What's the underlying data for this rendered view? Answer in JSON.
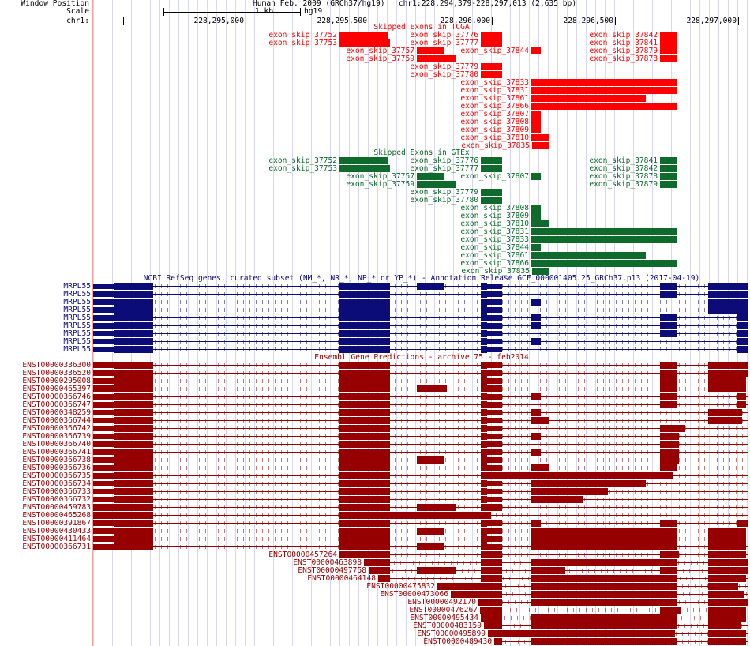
{
  "header": {
    "window_position_label": "Window Position",
    "scale_label": "Scale",
    "chr_label": "chr1:",
    "assembly_title": "Human Feb. 2009 (GRCh37/hg19)   chr1:228,294,379-228,297,013 (2,635 bp)",
    "scale_text": "1 kb",
    "scale_db": "hg19",
    "ruler_ticks": [
      "228,295,000",
      "228,295,500",
      "228,296,000",
      "228,296,500",
      "228,297,000"
    ]
  },
  "colors": {
    "tcga": "#ff0000",
    "gtex": "#0e6b2b",
    "refseq": "#0c0c78",
    "ensembl": "#960000"
  },
  "tracks": {
    "tcga": {
      "title": "Skipped Exons in TCGA",
      "rows": [
        [
          "exon_skip_37752",
          "exon_skip_37776",
          "exon_skip_37842"
        ],
        [
          "exon_skip_37753",
          "exon_skip_37777",
          "exon_skip_37841"
        ],
        [
          "exon_skip_37757",
          "exon_skip_37844",
          "exon_skip_37879"
        ],
        [
          "exon_skip_37759",
          "exon_skip_37878"
        ],
        [
          "exon_skip_37779"
        ],
        [
          "exon_skip_37780"
        ],
        [
          "exon_skip_37833"
        ],
        [
          "exon_skip_37831"
        ],
        [
          "exon_skip_37861"
        ],
        [
          "exon_skip_37866"
        ],
        [
          "exon_skip_37807"
        ],
        [
          "exon_skip_37808"
        ],
        [
          "exon_skip_37809"
        ],
        [
          "exon_skip_37810"
        ],
        [
          "exon_skip_37835"
        ]
      ]
    },
    "gtex": {
      "title": "Skipped Exons in GTEx",
      "rows": [
        [
          "exon_skip_37752",
          "exon_skip_37776",
          "exon_skip_37841"
        ],
        [
          "exon_skip_37753",
          "exon_skip_37777",
          "exon_skip_37842"
        ],
        [
          "exon_skip_37757",
          "exon_skip_37807",
          "exon_skip_37878"
        ],
        [
          "exon_skip_37759",
          "exon_skip_37879"
        ],
        [
          "exon_skip_37779"
        ],
        [
          "exon_skip_37780"
        ],
        [
          "exon_skip_37808"
        ],
        [
          "exon_skip_37809"
        ],
        [
          "exon_skip_37810"
        ],
        [
          "exon_skip_37831"
        ],
        [
          "exon_skip_37833"
        ],
        [
          "exon_skip_37844"
        ],
        [
          "exon_skip_37861"
        ],
        [
          "exon_skip_37866"
        ],
        [
          "exon_skip_37835"
        ]
      ]
    },
    "refseq": {
      "title": "NCBI RefSeq genes, curated subset (NM_*, NR_*, NP_* or YP_*) - Annotation Release GCF_000001405.25_GRCh37.p13 (2017-04-19)",
      "rows": [
        "MRPL55",
        "MRPL55",
        "MRPL55",
        "MRPL55",
        "MRPL55",
        "MRPL55",
        "MRPL55",
        "MRPL55",
        "MRPL55"
      ]
    },
    "ensembl": {
      "title": "Ensembl Gene Predictions - archive 75 - feb2014",
      "rows": [
        "ENST00000336300",
        "ENST00000336520",
        "ENST00000295008",
        "ENST00000465397",
        "ENST00000366746",
        "ENST00000366747",
        "ENST00000348259",
        "ENST00000366744",
        "ENST00000366742",
        "ENST00000366739",
        "ENST00000366740",
        "ENST00000366741",
        "ENST00000366738",
        "ENST00000366736",
        "ENST00000366735",
        "ENST00000366734",
        "ENST00000366733",
        "ENST00000366732",
        "ENST00000459783",
        "ENST00000465268",
        "ENST00000391867",
        "ENST00000430433",
        "ENST00000411464",
        "ENST00000366731",
        "ENST00000457264",
        "ENST00000463898",
        "ENST00000497758",
        "ENST00000464148",
        "ENST00000475832",
        "ENST00000473066",
        "ENST00000492170",
        "ENST00000476267",
        "ENST00000495434",
        "ENST00000483159",
        "ENST00000495899",
        "ENST00000489430"
      ]
    }
  }
}
